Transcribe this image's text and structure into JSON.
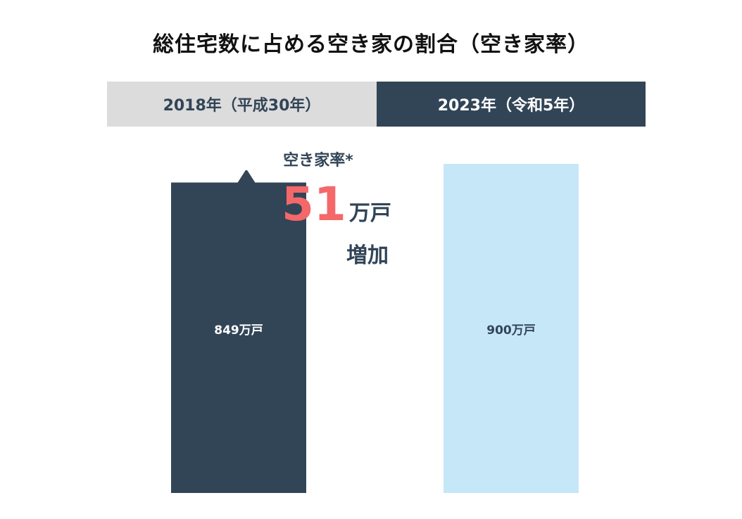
{
  "title": "総住宅数に占める空き家の割合（空き家率）",
  "headers": {
    "left": "2018年（平成30年）",
    "right": "2023年（令和5年）"
  },
  "annotation": {
    "label": "空き家率*",
    "value": "51",
    "unit": "万戸",
    "word": "増加",
    "arrow_icon": "double-arrow-vertical-icon"
  },
  "colors": {
    "dark_navy": "#324557",
    "light_blue": "#c6e7f8",
    "header_gray": "#dcdcdc",
    "accent_red": "#f4686a"
  },
  "chart_data": {
    "type": "bar",
    "categories": [
      "2018年（平成30年）",
      "2023年（令和5年）"
    ],
    "values": [
      849,
      900
    ],
    "data_labels": [
      "849万戸",
      "900万戸"
    ],
    "unit": "万戸",
    "grid": false,
    "legend": "none"
  }
}
